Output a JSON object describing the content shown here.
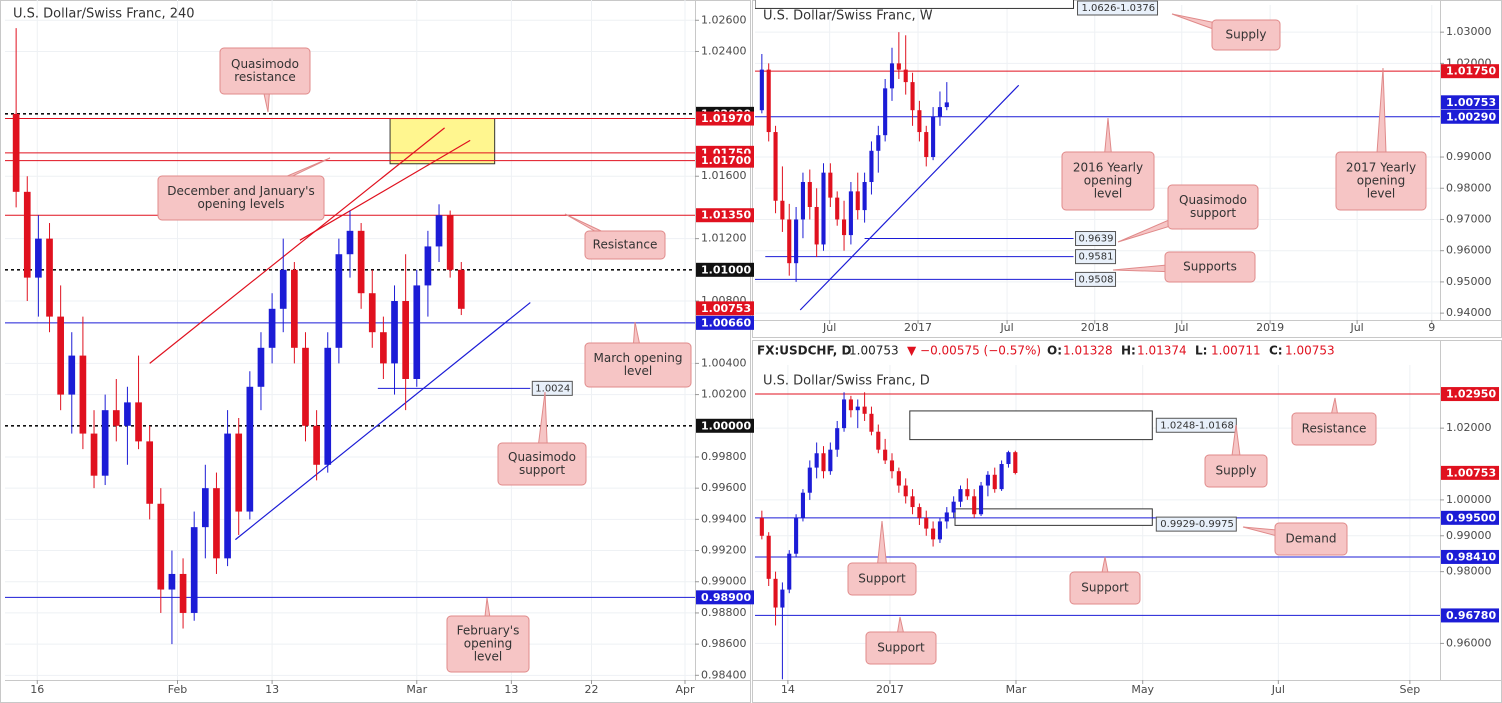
{
  "chart_data": [
    {
      "type": "candlestick",
      "title": "U.S. Dollar/Swiss Franc, 240",
      "up_color": "#1c1cd6",
      "down_color": "#e0111f",
      "grid": true,
      "xlim": [
        -1,
        61
      ],
      "ylim": [
        0.9837,
        1.0273
      ],
      "xticks": [
        {
          "value": 1.9,
          "label": "16"
        },
        {
          "value": 14.5,
          "label": "Feb"
        },
        {
          "value": 23.0,
          "label": "13"
        },
        {
          "value": 36.0,
          "label": "Mar"
        },
        {
          "value": 44.5,
          "label": "13"
        },
        {
          "value": 51.7,
          "label": "22"
        },
        {
          "value": 60.1,
          "label": "Apr"
        }
      ],
      "yticks": [
        {
          "value": 1.026,
          "label": "1.02600"
        },
        {
          "value": 1.024,
          "label": "1.02400"
        },
        {
          "value": 1.016,
          "label": "1.01600"
        },
        {
          "value": 1.012,
          "label": "1.01200"
        },
        {
          "value": 1.008,
          "label": "1.00800"
        },
        {
          "value": 1.004,
          "label": "1.00400"
        },
        {
          "value": 1.002,
          "label": "1.00200"
        },
        {
          "value": 0.998,
          "label": "0.99800"
        },
        {
          "value": 0.996,
          "label": "0.99600"
        },
        {
          "value": 0.994,
          "label": "0.99400"
        },
        {
          "value": 0.992,
          "label": "0.99200"
        },
        {
          "value": 0.99,
          "label": "0.99000"
        },
        {
          "value": 0.988,
          "label": "0.98800"
        },
        {
          "value": 0.986,
          "label": "0.98600"
        },
        {
          "value": 0.984,
          "label": "0.98400"
        }
      ],
      "x": [
        0,
        1,
        2,
        3,
        4,
        5,
        6,
        7,
        8,
        9,
        10,
        11,
        12,
        13,
        14,
        15,
        16,
        17,
        18,
        19,
        20,
        21,
        22,
        23,
        24,
        25,
        26,
        27,
        28,
        29,
        30,
        31,
        32,
        33,
        34,
        35,
        36,
        37,
        38,
        39,
        40
      ],
      "open": [
        1.02,
        1.015,
        1.0095,
        1.012,
        1.007,
        1.002,
        1.0045,
        0.9995,
        0.9968,
        1.001,
        1.0,
        1.0015,
        0.999,
        0.995,
        0.9895,
        0.9905,
        0.988,
        0.9935,
        0.996,
        0.9915,
        0.9995,
        0.9945,
        1.0025,
        1.005,
        1.0075,
        1.01,
        1.005,
        1.0,
        0.9975,
        1.005,
        1.011,
        1.0125,
        1.0085,
        1.006,
        1.004,
        1.008,
        1.003,
        1.009,
        1.0115,
        1.0135,
        1.01
      ],
      "high": [
        1.0255,
        1.016,
        1.0135,
        1.013,
        1.009,
        1.006,
        1.007,
        1.001,
        1.002,
        1.003,
        1.0025,
        1.0045,
        1.0,
        0.996,
        0.992,
        0.9915,
        0.9945,
        0.9975,
        0.997,
        1.001,
        1.0005,
        1.0035,
        1.006,
        1.0085,
        1.012,
        1.0105,
        1.006,
        1.001,
        1.006,
        1.012,
        1.0138,
        1.013,
        1.01,
        1.007,
        1.009,
        1.011,
        1.01,
        1.0125,
        1.0142,
        1.0138,
        1.0105
      ],
      "low": [
        1.014,
        1.008,
        1.007,
        1.006,
        1.001,
        0.9995,
        0.9985,
        0.996,
        0.9962,
        0.999,
        0.9975,
        0.9985,
        0.994,
        0.988,
        0.986,
        0.987,
        0.9875,
        0.9915,
        0.9905,
        0.991,
        0.993,
        0.994,
        1.001,
        1.004,
        1.006,
        1.004,
        0.999,
        0.9965,
        0.997,
        1.004,
        1.0095,
        1.0075,
        1.005,
        1.003,
        1.002,
        1.001,
        1.0025,
        1.007,
        1.0105,
        1.0095,
        1.0071
      ],
      "close": [
        1.015,
        1.0095,
        1.012,
        1.007,
        1.002,
        1.0045,
        0.9995,
        0.9968,
        1.001,
        1.0,
        1.0015,
        0.999,
        0.995,
        0.9895,
        0.9905,
        0.988,
        0.9935,
        0.996,
        0.9915,
        0.9995,
        0.9945,
        1.0025,
        1.005,
        1.0075,
        1.01,
        1.005,
        1.0,
        0.9975,
        1.005,
        1.011,
        1.0125,
        1.0085,
        1.006,
        1.004,
        1.008,
        1.003,
        1.009,
        1.0115,
        1.0135,
        1.01,
        1.0075
      ],
      "levels": [
        {
          "value": 1.02,
          "label": "1.02000",
          "color": "#111111",
          "style": "dashed"
        },
        {
          "value": 1.0197,
          "label": "1.01970",
          "color": "#e0111f",
          "style": "solid"
        },
        {
          "value": 1.0175,
          "label": "1.01750",
          "color": "#e0111f",
          "style": "solid"
        },
        {
          "value": 1.017,
          "label": "1.01700",
          "color": "#e0111f",
          "style": "solid"
        },
        {
          "value": 1.0135,
          "label": "1.01350",
          "color": "#e0111f",
          "style": "solid"
        },
        {
          "value": 1.01,
          "label": "1.01000",
          "color": "#111111",
          "style": "dashed"
        },
        {
          "value": 1.00753,
          "label": "1.00753",
          "color": "#e0111f",
          "style": "tag"
        },
        {
          "value": 1.0066,
          "label": "1.00660",
          "color": "#1c1cd6",
          "style": "solid"
        },
        {
          "value": 1.0,
          "label": "1.00000",
          "color": "#111111",
          "style": "dashed"
        },
        {
          "value": 0.989,
          "label": "0.98900",
          "color": "#1c1cd6",
          "style": "solid"
        }
      ],
      "segments": [
        {
          "value": 1.0024,
          "label": "1.0024",
          "x0": 32.5,
          "x1": 46.2
        }
      ],
      "zones": [
        {
          "top": 1.0197,
          "bottom": 1.0168,
          "x0": 33.6,
          "x1": 43,
          "color": "#fff68f"
        }
      ],
      "trendlines": [
        {
          "x": [
            12.0,
            38.5
          ],
          "y": [
            1.004,
            1.0191
          ],
          "color": "#e0111f"
        },
        {
          "x": [
            25.5,
            40.8
          ],
          "y": [
            1.0119,
            1.0183
          ],
          "color": "#e0111f"
        },
        {
          "x": [
            19.7,
            46.2
          ],
          "y": [
            0.9927,
            1.0079
          ],
          "color": "#1c1cd6"
        }
      ],
      "callouts": [
        {
          "text": [
            "Quasimodo",
            "resistance"
          ]
        },
        {
          "text": [
            "December and January's",
            "opening levels"
          ]
        },
        {
          "text": [
            "Resistance"
          ]
        },
        {
          "text": [
            "March opening",
            "level"
          ]
        },
        {
          "text": [
            "Quasimodo",
            "support"
          ]
        },
        {
          "text": [
            "February's",
            "opening",
            "level"
          ]
        }
      ]
    },
    {
      "type": "candlestick",
      "title": "U.S. Dollar/Swiss Franc, W",
      "up_color": "#1c1cd6",
      "down_color": "#e0111f",
      "grid": true,
      "xlim": [
        0,
        100
      ],
      "ylim": [
        0.9378,
        1.0387
      ],
      "xticks": [
        {
          "value": 10.9,
          "label": "Jul"
        },
        {
          "value": 23.8,
          "label": "2017"
        },
        {
          "value": 36.8,
          "label": "Jul"
        },
        {
          "value": 49.6,
          "label": "2018"
        },
        {
          "value": 62.3,
          "label": "Jul"
        },
        {
          "value": 75.2,
          "label": "2019"
        },
        {
          "value": 87.9,
          "label": "Jul"
        },
        {
          "value": 98.8,
          "label": "9"
        }
      ],
      "yticks": [
        {
          "value": 1.03,
          "label": "1.03000"
        },
        {
          "value": 1.02,
          "label": "1.02000"
        },
        {
          "value": 0.99,
          "label": "0.99000"
        },
        {
          "value": 0.98,
          "label": "0.98000"
        },
        {
          "value": 0.97,
          "label": "0.97000"
        },
        {
          "value": 0.96,
          "label": "0.96000"
        },
        {
          "value": 0.95,
          "label": "0.95000"
        },
        {
          "value": 0.94,
          "label": "0.94000"
        }
      ],
      "x": [
        1,
        2,
        3,
        4,
        5,
        6,
        7,
        8,
        9,
        10,
        11,
        12,
        13,
        14,
        15,
        16,
        17,
        18,
        19,
        20,
        21,
        22,
        23,
        24,
        25,
        26,
        27,
        28
      ],
      "open": [
        1.005,
        1.018,
        0.998,
        0.976,
        0.97,
        0.956,
        0.97,
        0.982,
        0.974,
        0.962,
        0.985,
        0.977,
        0.97,
        0.965,
        0.979,
        0.973,
        0.982,
        0.992,
        0.997,
        1.012,
        1.02,
        1.018,
        1.014,
        1.005,
        0.998,
        0.99,
        1.003,
        1.006
      ],
      "high": [
        1.023,
        1.02,
        1.0,
        0.987,
        0.975,
        0.974,
        0.985,
        0.986,
        0.98,
        0.988,
        0.988,
        0.979,
        0.976,
        0.982,
        0.985,
        0.985,
        0.995,
        1.0,
        1.015,
        1.025,
        1.03,
        1.029,
        1.017,
        1.008,
        1.0,
        1.006,
        1.011,
        1.014
      ],
      "low": [
        1.004,
        0.995,
        0.972,
        0.966,
        0.952,
        0.95,
        0.964,
        0.97,
        0.958,
        0.96,
        0.974,
        0.968,
        0.96,
        0.962,
        0.97,
        0.969,
        0.978,
        0.985,
        0.995,
        1.008,
        1.015,
        1.01,
        1.0,
        0.995,
        0.987,
        0.989,
        1.0,
        1.005
      ],
      "close": [
        1.018,
        0.998,
        0.976,
        0.97,
        0.956,
        0.97,
        0.982,
        0.974,
        0.962,
        0.985,
        0.977,
        0.97,
        0.965,
        0.979,
        0.973,
        0.982,
        0.992,
        0.997,
        1.012,
        1.02,
        1.018,
        1.014,
        1.005,
        0.998,
        0.99,
        1.003,
        1.006,
        1.0075
      ],
      "levels": [
        {
          "value": 1.0175,
          "label": "1.01750",
          "color": "#e0111f",
          "style": "solid"
        },
        {
          "value": 1.00753,
          "label": "1.00753",
          "color": "#1c1cd6",
          "style": "tag"
        },
        {
          "value": 1.0029,
          "label": "1.00290",
          "color": "#1c1cd6",
          "style": "solid"
        }
      ],
      "segments": [
        {
          "value": 0.9639,
          "label": "0.9639",
          "x0": 16,
          "x1": 46.5
        },
        {
          "value": 0.9581,
          "label": "0.9581",
          "x0": 1.5,
          "x1": 46.5
        },
        {
          "value": 0.9508,
          "label": "0.9508",
          "x0": 0,
          "x1": 46.5
        }
      ],
      "zones": [
        {
          "top": 1.0626,
          "bottom": 1.0376,
          "x0": 0,
          "x1": 46.5,
          "color": "#ffffff",
          "label": "1.0626-1.0376"
        }
      ],
      "trendlines": [
        {
          "x": [
            6.6,
            38.5
          ],
          "y": [
            0.941,
            1.013
          ],
          "color": "#1c1cd6"
        }
      ],
      "callouts": [
        {
          "text": [
            "Supply"
          ]
        },
        {
          "text": [
            "2016 Yearly",
            "opening",
            "level"
          ]
        },
        {
          "text": [
            "2017 Yearly",
            "opening",
            "level"
          ]
        },
        {
          "text": [
            "Quasimodo",
            "support"
          ]
        },
        {
          "text": [
            "Supports"
          ]
        }
      ]
    },
    {
      "type": "candlestick",
      "title": "U.S. Dollar/Swiss Franc, D",
      "header": {
        "symbol": "FX:USDCHF, D",
        "price": "1.00753",
        "change": "▼ −0.00575 (−0.57%)",
        "ohlc": [
          {
            "key": "O:",
            "value": "1.01328"
          },
          {
            "key": "H:",
            "value": "1.01374"
          },
          {
            "key": "L:",
            "value": "1.00711"
          },
          {
            "key": "C:",
            "value": "1.00753"
          }
        ]
      },
      "up_color": "#1c1cd6",
      "down_color": "#e0111f",
      "grid": true,
      "xlim": [
        0,
        100
      ],
      "ylim": [
        0.9498,
        1.0376
      ],
      "xticks": [
        {
          "value": 4.8,
          "label": "14"
        },
        {
          "value": 19.7,
          "label": "2017"
        },
        {
          "value": 38.1,
          "label": "Mar"
        },
        {
          "value": 56.6,
          "label": "May"
        },
        {
          "value": 76.4,
          "label": "Jul"
        },
        {
          "value": 95.6,
          "label": "Sep"
        }
      ],
      "yticks": [
        {
          "value": 1.02,
          "label": "1.02000"
        },
        {
          "value": 1.0,
          "label": "1.00000"
        },
        {
          "value": 0.99,
          "label": "0.99000"
        },
        {
          "value": 0.98,
          "label": "0.98000"
        },
        {
          "value": 0.96,
          "label": "0.96000"
        }
      ],
      "x": [
        1,
        2,
        3,
        4,
        5,
        6,
        7,
        8,
        9,
        10,
        11,
        12,
        13,
        14,
        15,
        16,
        17,
        18,
        19,
        20,
        21,
        22,
        23,
        24,
        25,
        26,
        27,
        28,
        29,
        30,
        31,
        32,
        33,
        34,
        35,
        36,
        37,
        38
      ],
      "open": [
        0.995,
        0.99,
        0.978,
        0.97,
        0.975,
        0.985,
        0.995,
        1.002,
        1.009,
        1.013,
        1.008,
        1.014,
        1.02,
        1.028,
        1.025,
        1.026,
        1.024,
        1.019,
        1.014,
        1.011,
        1.008,
        1.004,
        1.001,
        0.998,
        0.995,
        0.992,
        0.989,
        0.994,
        0.9965,
        0.9995,
        1.003,
        1.001,
        0.996,
        1.004,
        1.007,
        1.003,
        1.01,
        1.0133
      ],
      "high": [
        0.997,
        0.991,
        0.98,
        0.977,
        0.986,
        0.996,
        1.003,
        1.011,
        1.016,
        1.015,
        1.016,
        1.022,
        1.03,
        1.029,
        1.028,
        1.03,
        1.026,
        1.021,
        1.017,
        1.013,
        1.009,
        1.006,
        1.003,
        0.999,
        0.997,
        0.994,
        0.995,
        0.998,
        1.001,
        1.004,
        1.006,
        1.003,
        1.005,
        1.008,
        1.009,
        1.011,
        1.0137,
        1.0137
      ],
      "low": [
        0.989,
        0.976,
        0.965,
        0.95,
        0.974,
        0.984,
        0.994,
        1.0,
        1.006,
        1.006,
        1.007,
        1.012,
        1.019,
        1.023,
        1.02,
        1.022,
        1.018,
        1.013,
        1.01,
        1.006,
        1.002,
        0.999,
        0.996,
        0.993,
        0.99,
        0.987,
        0.988,
        0.992,
        0.995,
        0.998,
        1.0,
        0.995,
        0.9955,
        1.001,
        1.002,
        1.0025,
        1.009,
        1.0071
      ],
      "close": [
        0.99,
        0.978,
        0.97,
        0.975,
        0.985,
        0.995,
        1.002,
        1.009,
        1.013,
        1.008,
        1.014,
        1.02,
        1.028,
        1.025,
        1.026,
        1.024,
        1.019,
        1.014,
        1.011,
        1.008,
        1.004,
        1.001,
        0.998,
        0.995,
        0.992,
        0.989,
        0.994,
        0.9965,
        0.9995,
        1.003,
        1.001,
        0.996,
        1.004,
        1.007,
        1.003,
        1.01,
        1.0133,
        1.0075
      ],
      "levels": [
        {
          "value": 1.0295,
          "label": "1.02950",
          "color": "#e0111f",
          "style": "solid"
        },
        {
          "value": 1.00753,
          "label": "1.00753",
          "color": "#e0111f",
          "style": "tag"
        },
        {
          "value": 0.995,
          "label": "0.99500",
          "color": "#1c1cd6",
          "style": "solid"
        },
        {
          "value": 0.9841,
          "label": "0.98410",
          "color": "#1c1cd6",
          "style": "solid"
        },
        {
          "value": 0.9678,
          "label": "0.96780",
          "color": "#1c1cd6",
          "style": "solid"
        }
      ],
      "segments": [],
      "zones": [
        {
          "top": 1.0248,
          "bottom": 1.0168,
          "x0": 22.6,
          "x1": 58,
          "color": "#ffffff",
          "label": "1.0248-1.0168"
        },
        {
          "top": 0.9975,
          "bottom": 0.9929,
          "x0": 29.2,
          "x1": 58,
          "color": "#ffffff",
          "label": "0.9929-0.9975"
        }
      ],
      "trendlines": [],
      "callouts": [
        {
          "text": [
            "Resistance"
          ]
        },
        {
          "text": [
            "Supply"
          ]
        },
        {
          "text": [
            "Demand"
          ]
        },
        {
          "text": [
            "Support"
          ]
        },
        {
          "text": [
            "Support"
          ]
        },
        {
          "text": [
            "Support"
          ]
        }
      ]
    }
  ]
}
